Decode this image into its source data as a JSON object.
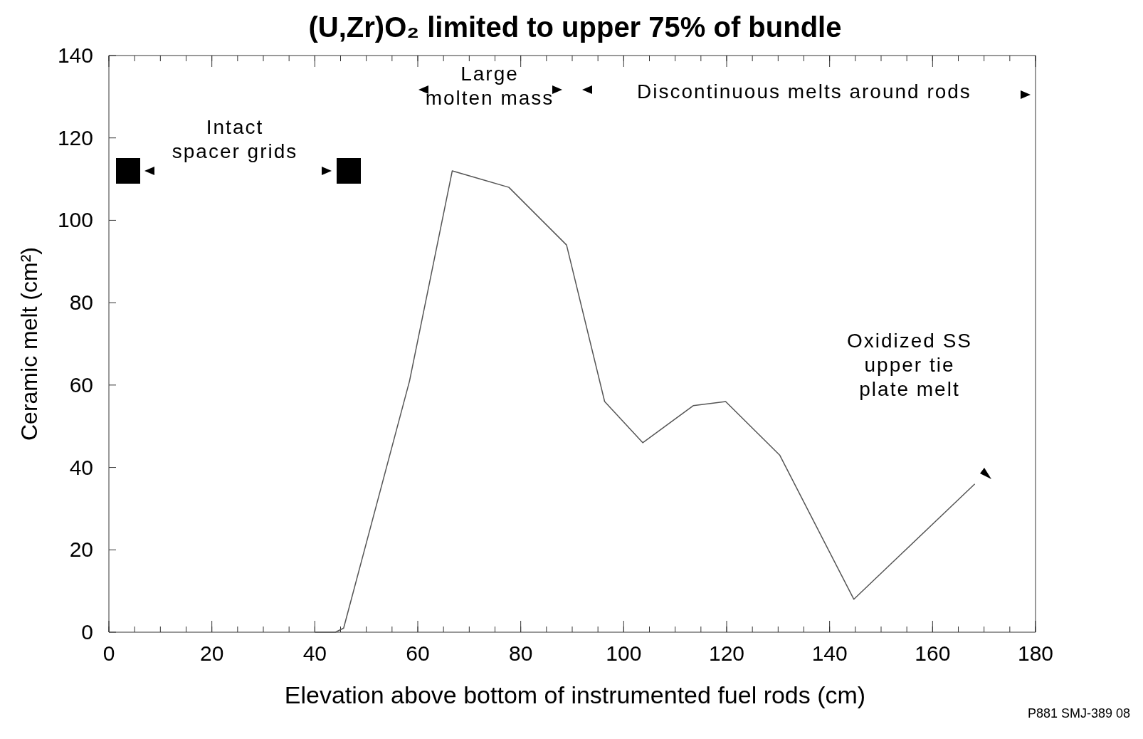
{
  "chart_data": {
    "type": "line",
    "title": "(U,Zr)O₂ limited to upper 75% of bundle",
    "xlabel": "Elevation above bottom of instrumented fuel rods (cm)",
    "ylabel": "Ceramic melt (cm²)",
    "x": [
      40,
      44,
      45.6,
      58.4,
      66.7,
      77.7,
      88.9,
      96.3,
      103.7,
      113.5,
      119.8,
      130.3,
      144.7,
      168.2
    ],
    "values": [
      0,
      0,
      1,
      61,
      112,
      108,
      94,
      56,
      46,
      55,
      56,
      43,
      8,
      36
    ],
    "color": "#555555",
    "marker": "none",
    "line_style": "solid",
    "grid": false,
    "xlim": [
      0,
      180
    ],
    "xticks": [
      0,
      20,
      40,
      60,
      80,
      100,
      120,
      140,
      160,
      180
    ],
    "ylim": [
      0,
      140
    ],
    "yticks": [
      0,
      20,
      40,
      60,
      80,
      100,
      120,
      140
    ],
    "annotations": [
      "Intact\nspacer grids",
      "Large\nmolten mass",
      "Discontinuous melts around rods",
      "Oxidized SS\nupper tie\nplate melt",
      "P881 SMJ-389 08"
    ]
  }
}
